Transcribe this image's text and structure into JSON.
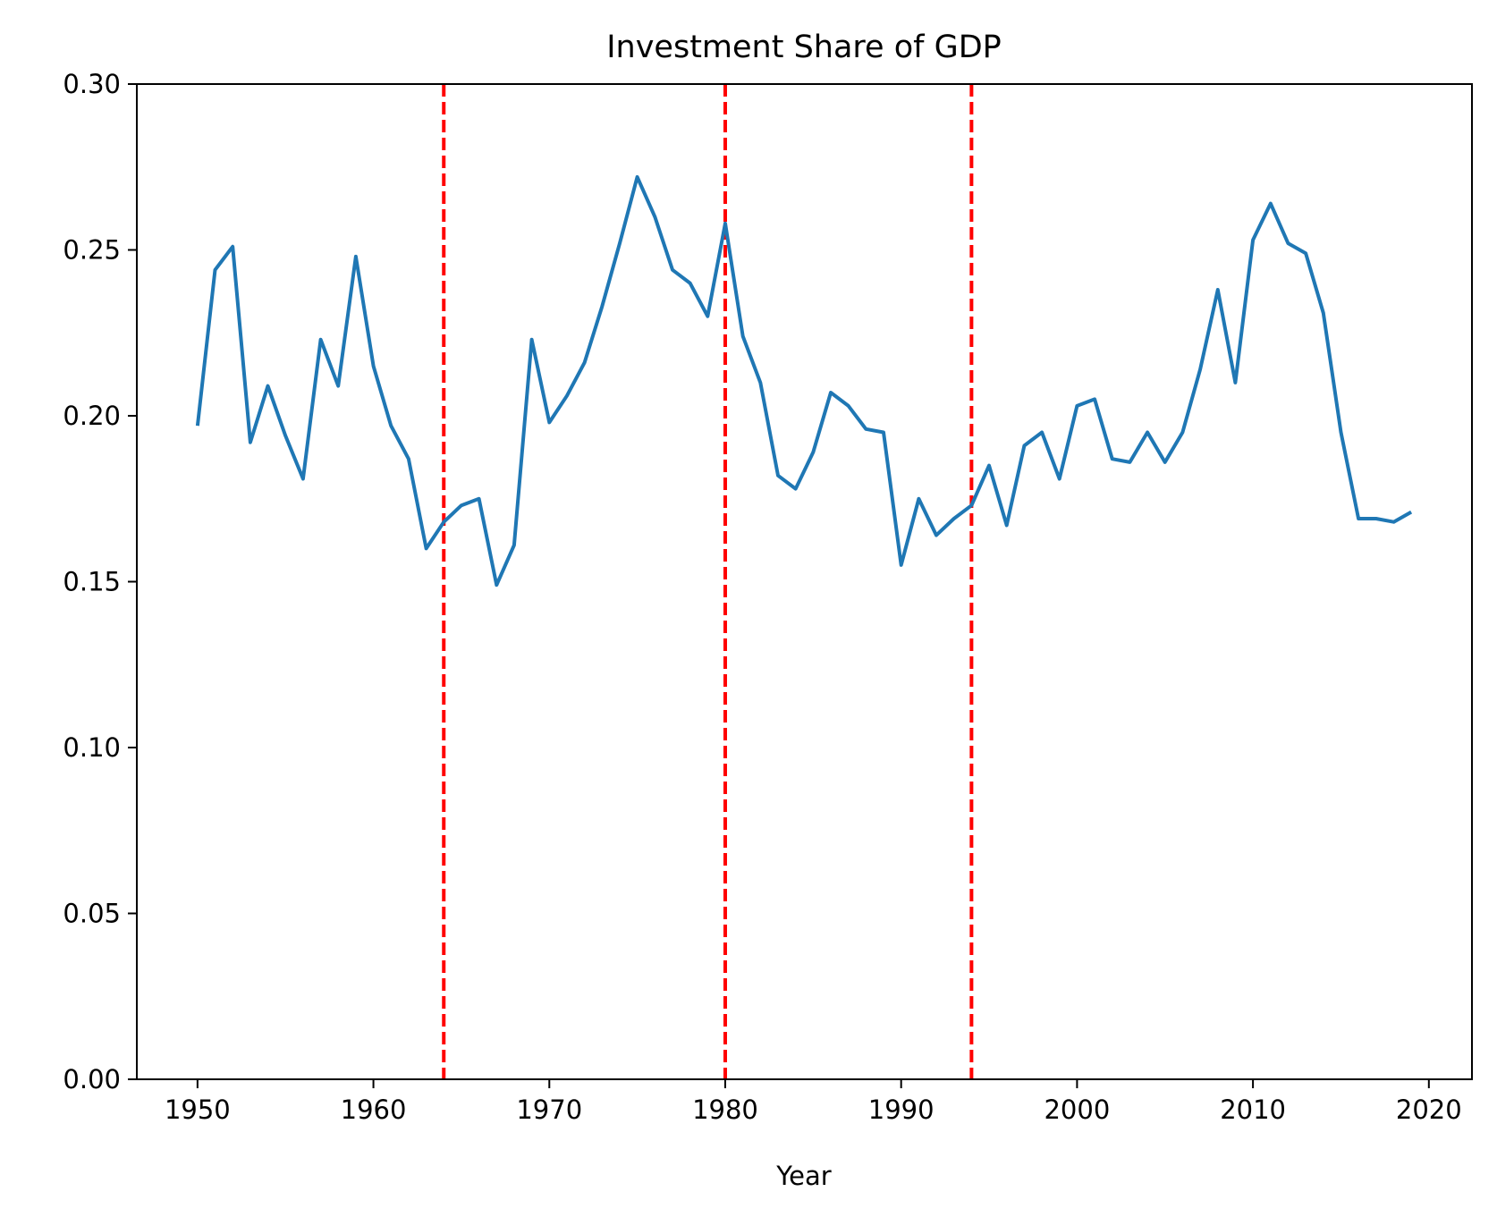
{
  "chart_data": {
    "type": "line",
    "title": "Investment Share of GDP",
    "xlabel": "Year",
    "ylabel": "",
    "xlim": [
      1946.55,
      2022.45
    ],
    "ylim": [
      0.0,
      0.3
    ],
    "xticks": [
      1950,
      1960,
      1970,
      1980,
      1990,
      2000,
      2010,
      2020
    ],
    "xtick_labels": [
      "1950",
      "1960",
      "1970",
      "1980",
      "1990",
      "2000",
      "2010",
      "2020"
    ],
    "yticks": [
      0.0,
      0.05,
      0.1,
      0.15,
      0.2,
      0.25,
      0.3
    ],
    "ytick_labels": [
      "0.00",
      "0.05",
      "0.10",
      "0.15",
      "0.20",
      "0.25",
      "0.30"
    ],
    "grid": false,
    "series": [
      {
        "color": "#1f77b4",
        "x": [
          1950,
          1951,
          1952,
          1953,
          1954,
          1955,
          1956,
          1957,
          1958,
          1959,
          1960,
          1961,
          1962,
          1963,
          1964,
          1965,
          1966,
          1967,
          1968,
          1969,
          1970,
          1971,
          1972,
          1973,
          1974,
          1975,
          1976,
          1977,
          1978,
          1979,
          1980,
          1981,
          1982,
          1983,
          1984,
          1985,
          1986,
          1987,
          1988,
          1989,
          1990,
          1991,
          1992,
          1993,
          1994,
          1995,
          1996,
          1997,
          1998,
          1999,
          2000,
          2001,
          2002,
          2003,
          2004,
          2005,
          2006,
          2007,
          2008,
          2009,
          2010,
          2011,
          2012,
          2013,
          2014,
          2015,
          2016,
          2017,
          2018,
          2019
        ],
        "values": [
          0.197,
          0.244,
          0.251,
          0.192,
          0.209,
          0.194,
          0.181,
          0.223,
          0.209,
          0.248,
          0.215,
          0.197,
          0.187,
          0.16,
          0.168,
          0.173,
          0.175,
          0.149,
          0.161,
          0.223,
          0.198,
          0.206,
          0.216,
          0.233,
          0.252,
          0.272,
          0.26,
          0.244,
          0.24,
          0.23,
          0.258,
          0.224,
          0.21,
          0.182,
          0.178,
          0.189,
          0.207,
          0.203,
          0.196,
          0.195,
          0.155,
          0.175,
          0.164,
          0.169,
          0.173,
          0.185,
          0.167,
          0.191,
          0.195,
          0.181,
          0.203,
          0.205,
          0.187,
          0.186,
          0.195,
          0.186,
          0.195,
          0.214,
          0.238,
          0.21,
          0.253,
          0.264,
          0.252,
          0.249,
          0.231,
          0.195,
          0.169,
          0.169,
          0.168,
          0.171
        ]
      }
    ],
    "vlines": [
      {
        "x": 1964,
        "color": "#ff0000",
        "style": "dashed"
      },
      {
        "x": 1980,
        "color": "#ff0000",
        "style": "dashed"
      },
      {
        "x": 1994,
        "color": "#ff0000",
        "style": "dashed"
      }
    ]
  }
}
